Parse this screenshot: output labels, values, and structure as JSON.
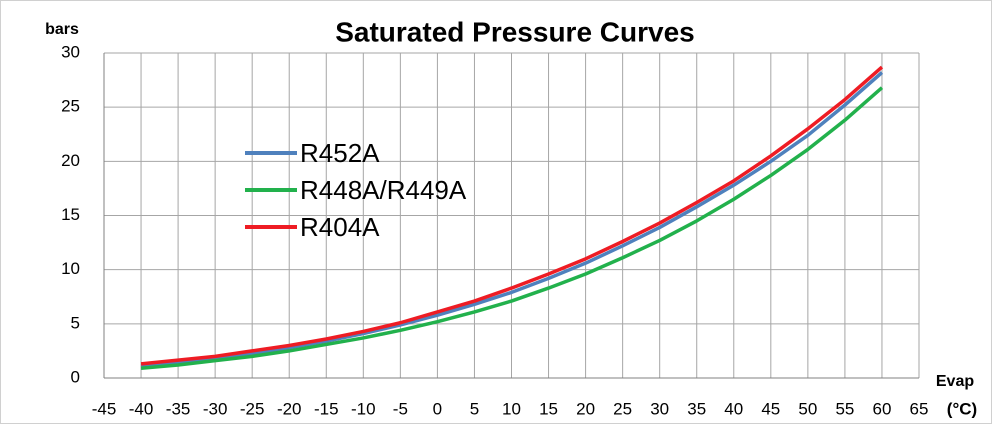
{
  "chart_data": {
    "type": "line",
    "title": "Saturated Pressure Curves",
    "y_label": "bars",
    "x_label": "Evap",
    "x_unit": "(°C)",
    "x": [
      -40,
      -35,
      -30,
      -25,
      -20,
      -15,
      -10,
      -5,
      0,
      5,
      10,
      15,
      20,
      25,
      30,
      35,
      40,
      45,
      50,
      55,
      60
    ],
    "series": [
      {
        "name": "R452A",
        "color": "#4f81bd",
        "values": [
          1.1,
          1.45,
          1.85,
          2.3,
          2.8,
          3.4,
          4.1,
          4.9,
          5.8,
          6.8,
          7.9,
          9.2,
          10.6,
          12.2,
          13.9,
          15.8,
          17.8,
          20.0,
          22.4,
          25.2,
          28.2
        ]
      },
      {
        "name": "R448A/R449A",
        "color": "#22b14c",
        "values": [
          0.9,
          1.2,
          1.6,
          2.0,
          2.5,
          3.1,
          3.7,
          4.4,
          5.2,
          6.1,
          7.1,
          8.3,
          9.6,
          11.1,
          12.7,
          14.5,
          16.5,
          18.7,
          21.1,
          23.8,
          26.8
        ]
      },
      {
        "name": "R404A",
        "color": "#ee1c24",
        "values": [
          1.3,
          1.65,
          2.0,
          2.5,
          3.0,
          3.6,
          4.3,
          5.1,
          6.1,
          7.1,
          8.3,
          9.6,
          11.0,
          12.6,
          14.3,
          16.2,
          18.2,
          20.5,
          23.0,
          25.7,
          28.7
        ]
      }
    ],
    "xlim": [
      -45,
      65
    ],
    "xticks": [
      -45,
      -40,
      -35,
      -30,
      -25,
      -20,
      -15,
      -10,
      -5,
      0,
      5,
      10,
      15,
      20,
      25,
      30,
      35,
      40,
      45,
      50,
      55,
      60,
      65
    ],
    "ylim": [
      0,
      30
    ],
    "yticks": [
      0,
      5,
      10,
      15,
      20,
      25,
      30
    ],
    "grid": true,
    "legend": "upper-left"
  }
}
